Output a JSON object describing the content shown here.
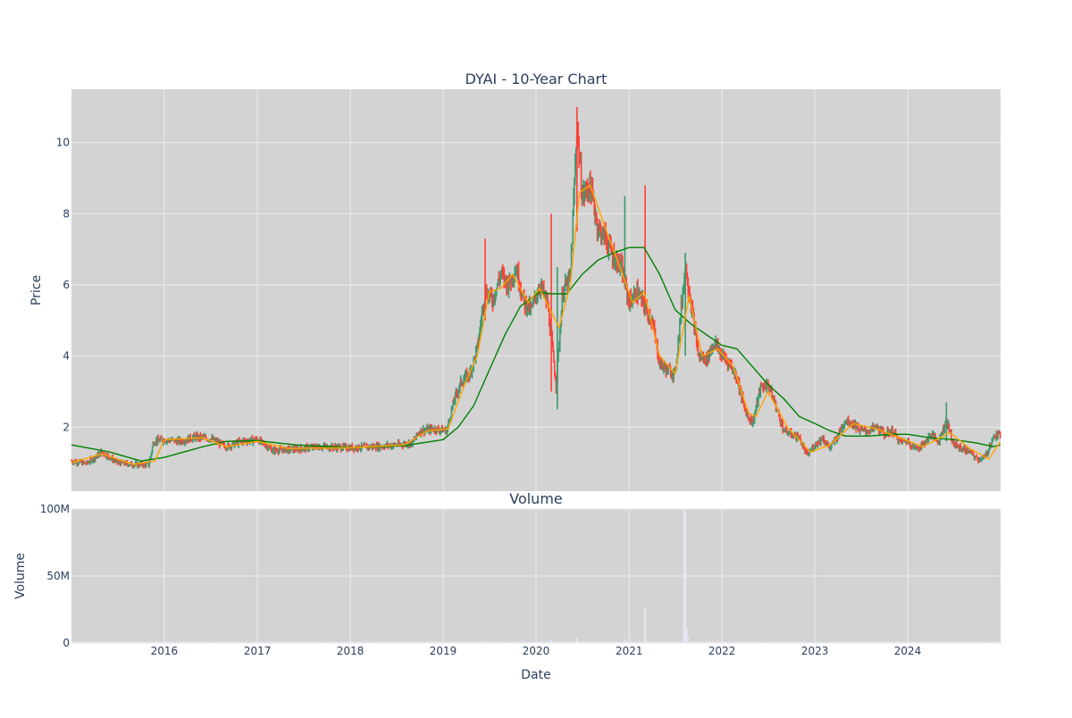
{
  "chart_data": [
    {
      "type": "candlestick",
      "title": "DYAI - 10-Year Chart",
      "xlabel": "",
      "ylabel": "Price",
      "x_range": [
        "2015-01-01",
        "2024-12-31"
      ],
      "ylim": [
        0.2,
        11.5
      ],
      "y_ticks": [
        2,
        4,
        6,
        8,
        10
      ],
      "x_ticks": [
        "2016",
        "2017",
        "2018",
        "2019",
        "2020",
        "2021",
        "2022",
        "2023",
        "2024"
      ],
      "grid": true,
      "colors": {
        "up": "#3d9970",
        "down": "#ff4136",
        "ma_short": "#ffa500",
        "ma_long": "#008000",
        "plot_bg": "#d3d3d3",
        "grid": "#ececec"
      },
      "price_path": [
        [
          "2015-01-01",
          1.05
        ],
        [
          "2015-03-01",
          0.98
        ],
        [
          "2015-05-01",
          1.3
        ],
        [
          "2015-07-01",
          1.0
        ],
        [
          "2015-09-01",
          0.95
        ],
        [
          "2015-11-01",
          0.95
        ],
        [
          "2015-11-20",
          1.6
        ],
        [
          "2016-01-01",
          1.65
        ],
        [
          "2016-03-01",
          1.6
        ],
        [
          "2016-05-01",
          1.72
        ],
        [
          "2016-07-01",
          1.68
        ],
        [
          "2016-09-01",
          1.45
        ],
        [
          "2016-11-01",
          1.6
        ],
        [
          "2017-01-01",
          1.65
        ],
        [
          "2017-03-01",
          1.35
        ],
        [
          "2017-06-01",
          1.38
        ],
        [
          "2017-09-01",
          1.45
        ],
        [
          "2018-01-01",
          1.42
        ],
        [
          "2018-04-01",
          1.45
        ],
        [
          "2018-07-01",
          1.5
        ],
        [
          "2018-09-01",
          1.55
        ],
        [
          "2018-10-01",
          1.9
        ],
        [
          "2018-12-01",
          1.95
        ],
        [
          "2019-01-15",
          1.9
        ],
        [
          "2019-02-15",
          2.8
        ],
        [
          "2019-03-15",
          3.3
        ],
        [
          "2019-04-15",
          3.5
        ],
        [
          "2019-05-15",
          4.2
        ],
        [
          "2019-06-15",
          5.8
        ],
        [
          "2019-07-15",
          5.6
        ],
        [
          "2019-08-15",
          6.3
        ],
        [
          "2019-09-15",
          6.0
        ],
        [
          "2019-10-15",
          6.5
        ],
        [
          "2019-11-15",
          5.5
        ],
        [
          "2019-12-15",
          5.3
        ],
        [
          "2020-01-15",
          6.0
        ],
        [
          "2020-02-15",
          5.5
        ],
        [
          "2020-03-20",
          3.2
        ],
        [
          "2020-04-15",
          5.8
        ],
        [
          "2020-05-15",
          6.2
        ],
        [
          "2020-06-10",
          10.5
        ],
        [
          "2020-07-01",
          8.5
        ],
        [
          "2020-08-01",
          8.8
        ],
        [
          "2020-09-01",
          7.6
        ],
        [
          "2020-10-01",
          7.3
        ],
        [
          "2020-11-01",
          6.8
        ],
        [
          "2020-12-01",
          6.5
        ],
        [
          "2021-01-01",
          5.5
        ],
        [
          "2021-02-01",
          5.8
        ],
        [
          "2021-03-01",
          5.4
        ],
        [
          "2021-04-01",
          5.0
        ],
        [
          "2021-05-01",
          3.8
        ],
        [
          "2021-06-01",
          3.6
        ],
        [
          "2021-07-01",
          3.5
        ],
        [
          "2021-08-10",
          6.6
        ],
        [
          "2021-09-01",
          5.5
        ],
        [
          "2021-10-01",
          4.0
        ],
        [
          "2021-11-01",
          3.9
        ],
        [
          "2021-12-01",
          4.4
        ],
        [
          "2022-01-01",
          4.0
        ],
        [
          "2022-02-01",
          3.8
        ],
        [
          "2022-03-01",
          3.4
        ],
        [
          "2022-04-01",
          2.5
        ],
        [
          "2022-05-01",
          2.1
        ],
        [
          "2022-06-01",
          3.1
        ],
        [
          "2022-07-01",
          3.2
        ],
        [
          "2022-08-01",
          2.6
        ],
        [
          "2022-09-01",
          1.9
        ],
        [
          "2022-10-01",
          1.8
        ],
        [
          "2022-11-01",
          1.7
        ],
        [
          "2022-12-01",
          1.2
        ],
        [
          "2023-01-01",
          1.5
        ],
        [
          "2023-02-01",
          1.7
        ],
        [
          "2023-03-01",
          1.4
        ],
        [
          "2023-04-01",
          1.75
        ],
        [
          "2023-05-01",
          2.2
        ],
        [
          "2023-06-01",
          2.1
        ],
        [
          "2023-07-01",
          1.9
        ],
        [
          "2023-08-01",
          1.9
        ],
        [
          "2023-09-01",
          2.0
        ],
        [
          "2023-10-01",
          1.8
        ],
        [
          "2023-11-01",
          1.9
        ],
        [
          "2023-12-01",
          1.6
        ],
        [
          "2024-01-01",
          1.6
        ],
        [
          "2024-02-01",
          1.4
        ],
        [
          "2024-03-01",
          1.5
        ],
        [
          "2024-04-01",
          1.8
        ],
        [
          "2024-05-01",
          1.6
        ],
        [
          "2024-06-01",
          2.2
        ],
        [
          "2024-07-01",
          1.5
        ],
        [
          "2024-08-01",
          1.4
        ],
        [
          "2024-09-01",
          1.3
        ],
        [
          "2024-10-01",
          1.1
        ],
        [
          "2024-11-01",
          1.15
        ],
        [
          "2024-12-01",
          1.7
        ],
        [
          "2024-12-31",
          1.8
        ]
      ],
      "spikes": [
        {
          "date": "2020-03-01",
          "high": 8.0,
          "low": 3.0
        },
        {
          "date": "2020-03-25",
          "high": 6.5,
          "low": 2.5
        },
        {
          "date": "2020-06-10",
          "high": 11.0,
          "low": 7.5
        },
        {
          "date": "2020-12-15",
          "high": 8.5,
          "low": 6.0
        },
        {
          "date": "2021-03-05",
          "high": 8.8,
          "low": 5.5
        },
        {
          "date": "2021-08-10",
          "high": 6.9,
          "low": 4.0
        },
        {
          "date": "2019-06-15",
          "high": 7.3,
          "low": 5.0
        },
        {
          "date": "2024-06-01",
          "high": 2.7,
          "low": 1.6
        }
      ],
      "ma_short": [
        [
          "2015-01-01",
          1.0
        ],
        [
          "2015-05-01",
          1.25
        ],
        [
          "2015-09-01",
          0.95
        ],
        [
          "2015-11-25",
          1.05
        ],
        [
          "2016-01-01",
          1.65
        ],
        [
          "2016-06-01",
          1.7
        ],
        [
          "2016-09-01",
          1.45
        ],
        [
          "2017-01-01",
          1.6
        ],
        [
          "2017-05-01",
          1.4
        ],
        [
          "2018-01-01",
          1.42
        ],
        [
          "2018-08-01",
          1.5
        ],
        [
          "2018-11-01",
          1.9
        ],
        [
          "2019-01-20",
          1.95
        ],
        [
          "2019-04-01",
          3.3
        ],
        [
          "2019-05-15",
          4.0
        ],
        [
          "2019-07-01",
          5.8
        ],
        [
          "2019-08-15",
          5.9
        ],
        [
          "2019-10-01",
          6.3
        ],
        [
          "2019-12-01",
          5.5
        ],
        [
          "2020-01-15",
          5.9
        ],
        [
          "2020-04-01",
          4.8
        ],
        [
          "2020-05-15",
          6.0
        ],
        [
          "2020-06-20",
          8.6
        ],
        [
          "2020-08-01",
          8.8
        ],
        [
          "2020-10-15",
          7.3
        ],
        [
          "2020-12-01",
          6.4
        ],
        [
          "2021-01-15",
          5.5
        ],
        [
          "2021-03-01",
          5.8
        ],
        [
          "2021-05-01",
          4.0
        ],
        [
          "2021-07-01",
          3.5
        ],
        [
          "2021-08-25",
          5.7
        ],
        [
          "2021-10-15",
          4.0
        ],
        [
          "2021-12-15",
          4.2
        ],
        [
          "2022-02-15",
          3.7
        ],
        [
          "2022-04-15",
          2.4
        ],
        [
          "2022-05-15",
          2.3
        ],
        [
          "2022-07-01",
          3.0
        ],
        [
          "2022-09-15",
          2.0
        ],
        [
          "2022-12-15",
          1.3
        ],
        [
          "2023-03-01",
          1.5
        ],
        [
          "2023-06-01",
          2.1
        ],
        [
          "2023-09-01",
          1.95
        ],
        [
          "2023-12-01",
          1.7
        ],
        [
          "2024-03-01",
          1.45
        ],
        [
          "2024-06-15",
          1.85
        ],
        [
          "2024-09-01",
          1.4
        ],
        [
          "2024-11-15",
          1.1
        ],
        [
          "2024-12-31",
          1.6
        ]
      ],
      "ma_long": [
        [
          "2015-01-01",
          1.5
        ],
        [
          "2015-06-01",
          1.3
        ],
        [
          "2015-10-01",
          1.05
        ],
        [
          "2016-01-01",
          1.15
        ],
        [
          "2016-06-01",
          1.45
        ],
        [
          "2016-09-01",
          1.6
        ],
        [
          "2017-01-01",
          1.62
        ],
        [
          "2017-06-01",
          1.5
        ],
        [
          "2018-01-01",
          1.42
        ],
        [
          "2018-08-01",
          1.48
        ],
        [
          "2019-01-01",
          1.65
        ],
        [
          "2019-03-01",
          2.0
        ],
        [
          "2019-05-01",
          2.6
        ],
        [
          "2019-07-01",
          3.6
        ],
        [
          "2019-09-01",
          4.6
        ],
        [
          "2019-11-01",
          5.4
        ],
        [
          "2020-01-15",
          5.8
        ],
        [
          "2020-03-01",
          5.75
        ],
        [
          "2020-05-01",
          5.75
        ],
        [
          "2020-07-01",
          6.3
        ],
        [
          "2020-09-01",
          6.7
        ],
        [
          "2020-11-01",
          6.9
        ],
        [
          "2021-01-01",
          7.05
        ],
        [
          "2021-03-01",
          7.05
        ],
        [
          "2021-05-01",
          6.3
        ],
        [
          "2021-07-01",
          5.3
        ],
        [
          "2021-09-01",
          4.9
        ],
        [
          "2021-11-01",
          4.6
        ],
        [
          "2022-01-01",
          4.3
        ],
        [
          "2022-03-01",
          4.2
        ],
        [
          "2022-05-01",
          3.7
        ],
        [
          "2022-07-01",
          3.2
        ],
        [
          "2022-09-01",
          2.8
        ],
        [
          "2022-11-01",
          2.3
        ],
        [
          "2023-01-01",
          2.1
        ],
        [
          "2023-03-01",
          1.9
        ],
        [
          "2023-05-01",
          1.75
        ],
        [
          "2023-08-01",
          1.75
        ],
        [
          "2023-11-01",
          1.8
        ],
        [
          "2024-01-01",
          1.8
        ],
        [
          "2024-04-01",
          1.7
        ],
        [
          "2024-07-01",
          1.65
        ],
        [
          "2024-10-01",
          1.55
        ],
        [
          "2024-12-01",
          1.45
        ],
        [
          "2024-12-31",
          1.5
        ]
      ]
    },
    {
      "type": "bar",
      "title": "Volume",
      "xlabel": "Date",
      "ylabel": "Volume",
      "x_range": [
        "2015-01-01",
        "2024-12-31"
      ],
      "ylim": [
        0,
        100000000
      ],
      "y_ticks": [
        0,
        50000000,
        100000000
      ],
      "y_tick_labels": [
        "0",
        "50M",
        "100M"
      ],
      "x_ticks": [
        "2016",
        "2017",
        "2018",
        "2019",
        "2020",
        "2021",
        "2022",
        "2023",
        "2024"
      ],
      "grid": true,
      "bar_color": "#e5e5f0",
      "bars": [
        [
          "2019-06-15",
          2000000
        ],
        [
          "2019-09-15",
          1500000
        ],
        [
          "2020-03-01",
          2500000
        ],
        [
          "2020-06-10",
          4000000
        ],
        [
          "2020-12-15",
          3000000
        ],
        [
          "2021-03-05",
          27000000
        ],
        [
          "2021-08-05",
          99000000
        ],
        [
          "2021-08-10",
          100000000
        ],
        [
          "2021-08-15",
          12000000
        ],
        [
          "2021-08-20",
          5000000
        ],
        [
          "2022-05-01",
          1500000
        ],
        [
          "2023-05-01",
          1200000
        ],
        [
          "2024-06-01",
          1500000
        ]
      ]
    }
  ]
}
